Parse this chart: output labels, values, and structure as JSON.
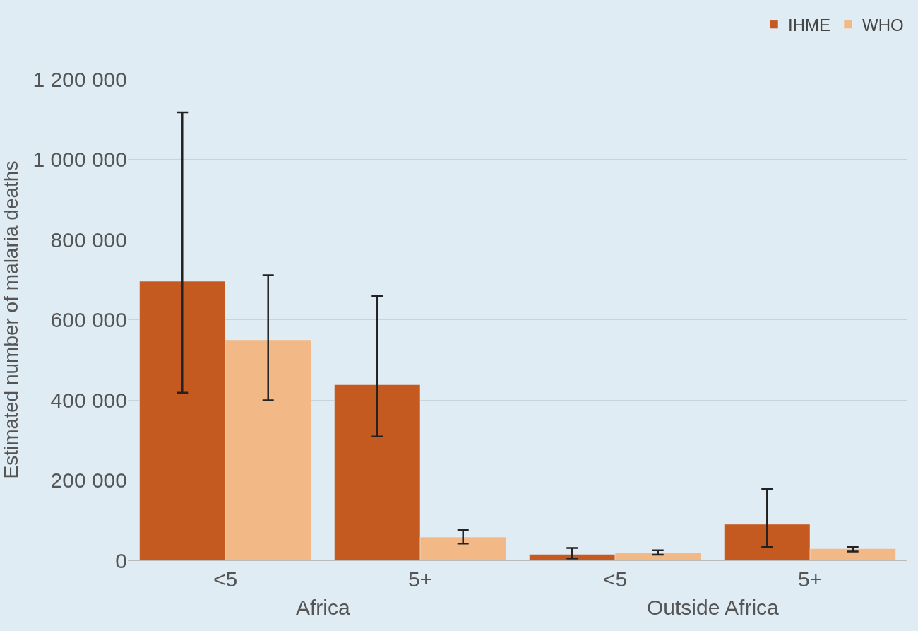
{
  "chart_data": {
    "type": "bar",
    "ylabel": "Estimated number of malaria deaths",
    "categories": [
      "<5",
      "5+",
      "<5",
      "5+"
    ],
    "annotations": [
      "Africa",
      "Outside Africa"
    ],
    "series": [
      {
        "name": "IHME",
        "color": "#c55a21",
        "values": [
          696000,
          438000,
          15000,
          90000
        ],
        "errors": [
          [
            418000,
            1117000
          ],
          [
            309000,
            659000
          ],
          [
            5000,
            31000
          ],
          [
            34000,
            178000
          ]
        ]
      },
      {
        "name": "WHO",
        "color": "#f2b987",
        "values": [
          550000,
          58000,
          19000,
          29000
        ],
        "errors": [
          [
            399000,
            711000
          ],
          [
            42000,
            76000
          ],
          [
            14000,
            25000
          ],
          [
            22000,
            34000
          ]
        ]
      }
    ],
    "ylim": [
      0,
      1200000
    ],
    "yticks": [
      0,
      {
        "value": 200000,
        "label": "200 000"
      },
      {
        "value": 400000,
        "label": "400 000"
      },
      {
        "value": 600000,
        "label": "600 000"
      },
      {
        "value": 800000,
        "label": "800 000"
      },
      {
        "value": 1000000,
        "label": "1 000 000"
      },
      {
        "value": 1200000,
        "label": "1 200 000"
      }
    ],
    "grid": "y",
    "legend": "top right"
  }
}
